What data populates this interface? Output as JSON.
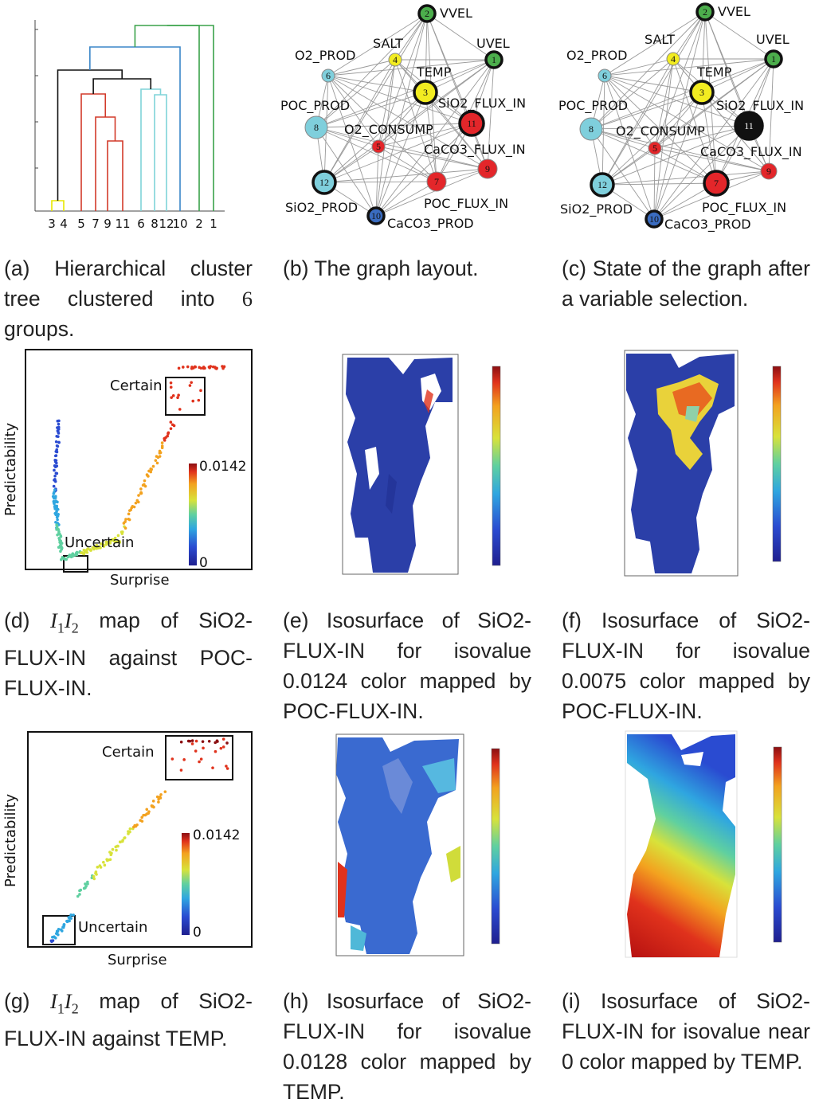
{
  "dendrogram": {
    "leaves": [
      "3",
      "4",
      "5",
      "7",
      "9",
      "11",
      "6",
      "8",
      "12",
      "10",
      "2",
      "1"
    ],
    "group_colors": {
      "yellow": "#e8e800",
      "red": "#d23a2a",
      "cyan": "#7fd4d8",
      "blue": "#3a86c8",
      "green": "#3aa24a",
      "black": "#111111"
    }
  },
  "graphs": [
    {
      "id": "b",
      "nodes": [
        {
          "num": "1",
          "label": "UVEL",
          "color": "#4cae4c",
          "bold": true
        },
        {
          "num": "2",
          "label": "VVEL",
          "color": "#4cae4c",
          "bold": true
        },
        {
          "num": "3",
          "label": "TEMP",
          "color": "#f2ec21",
          "bold": true
        },
        {
          "num": "4",
          "label": "SALT",
          "color": "#f2ec21",
          "bold": false
        },
        {
          "num": "5",
          "label": "O2_CONSUMP",
          "color": "#e3262a",
          "bold": false
        },
        {
          "num": "6",
          "label": "O2_PROD",
          "color": "#7fcfdc",
          "bold": false
        },
        {
          "num": "7",
          "label": "POC_FLUX_IN",
          "color": "#e3262a",
          "bold": false
        },
        {
          "num": "8",
          "label": "POC_PROD",
          "color": "#7fcfdc",
          "bold": false
        },
        {
          "num": "9",
          "label": "CaCO3_FLUX_IN",
          "color": "#e3262a",
          "bold": false
        },
        {
          "num": "10",
          "label": "CaCO3_PROD",
          "color": "#3a6cc0",
          "bold": true
        },
        {
          "num": "11",
          "label": "SiO2_FLUX_IN",
          "color": "#e3262a",
          "bold": true
        },
        {
          "num": "12",
          "label": "SiO2_PROD",
          "color": "#7fcfdc",
          "bold": true
        }
      ]
    },
    {
      "id": "c",
      "nodes": [
        {
          "num": "1",
          "label": "UVEL",
          "color": "#4cae4c",
          "bold": true
        },
        {
          "num": "2",
          "label": "VVEL",
          "color": "#4cae4c",
          "bold": true
        },
        {
          "num": "3",
          "label": "TEMP",
          "color": "#f2ec21",
          "bold": true
        },
        {
          "num": "4",
          "label": "SALT",
          "color": "#f2ec21",
          "bold": false
        },
        {
          "num": "5",
          "label": "O2_CONSUMP",
          "color": "#e3262a",
          "bold": false
        },
        {
          "num": "6",
          "label": "O2_PROD",
          "color": "#7fcfdc",
          "bold": false
        },
        {
          "num": "7",
          "label": "POC_FLUX_IN",
          "color": "#e3262a",
          "bold": true
        },
        {
          "num": "8",
          "label": "POC_PROD",
          "color": "#7fcfdc",
          "bold": false
        },
        {
          "num": "9",
          "label": "CaCO3_FLUX_IN",
          "color": "#e3262a",
          "bold": false
        },
        {
          "num": "10",
          "label": "CaCO3_PROD",
          "color": "#3a6cc0",
          "bold": true
        },
        {
          "num": "11",
          "label": "SiO2_FLUX_IN",
          "color": "#111111",
          "bold": true
        },
        {
          "num": "12",
          "label": "SiO2_PROD",
          "color": "#7fcfdc",
          "bold": true
        }
      ]
    }
  ],
  "scatter_d": {
    "xlabel": "Surprise",
    "ylabel": "Predictability",
    "certain_label": "Certain",
    "uncertain_label": "Uncertain",
    "colorbar_max": "0.0142",
    "colorbar_min": "0"
  },
  "scatter_g": {
    "xlabel": "Surprise",
    "ylabel": "Predictability",
    "certain_label": "Certain",
    "uncertain_label": "Uncertain",
    "colorbar_max": "0.0142",
    "colorbar_min": "0"
  },
  "captions": {
    "a": {
      "letter": "(a)",
      "text": "Hierarchical cluster tree clustered into ",
      "num": "6",
      "tail": " groups."
    },
    "b": {
      "letter": "(b)",
      "text": "The graph layout."
    },
    "c": {
      "letter": "(c)",
      "text": "State of the graph after a variable selection."
    },
    "d": {
      "letter": "(d)",
      "mathA": "I",
      "subA": "1",
      "mathB": "I",
      "subB": "2",
      "text": " map of SiO2-FLUX-IN against POC-FLUX-IN."
    },
    "e": {
      "letter": "(e)",
      "text": "Isosurface of SiO2-FLUX-IN for isovalue 0.0124 color mapped by POC-FLUX-IN."
    },
    "f": {
      "letter": "(f)",
      "text": "Isosurface of SiO2-FLUX-IN for isovalue 0.0075 color mapped by POC-FLUX-IN."
    },
    "g": {
      "letter": "(g)",
      "mathA": "I",
      "subA": "1",
      "mathB": "I",
      "subB": "2",
      "text": " map of SiO2-FLUX-IN against TEMP."
    },
    "h": {
      "letter": "(h)",
      "text": "Isosurface of SiO2-FLUX-IN for isovalue 0.0128 color mapped by TEMP."
    },
    "i": {
      "letter": "(i)",
      "text": "Isosurface of SiO2-FLUX-IN for isovalue near 0 color mapped by TEMP."
    }
  },
  "render_colors": {
    "jet": [
      "#1f1f8f",
      "#2a4bd1",
      "#2fa6e0",
      "#5fd0a0",
      "#d8e23a",
      "#f3a21f",
      "#e0321c",
      "#8b0f12"
    ]
  }
}
